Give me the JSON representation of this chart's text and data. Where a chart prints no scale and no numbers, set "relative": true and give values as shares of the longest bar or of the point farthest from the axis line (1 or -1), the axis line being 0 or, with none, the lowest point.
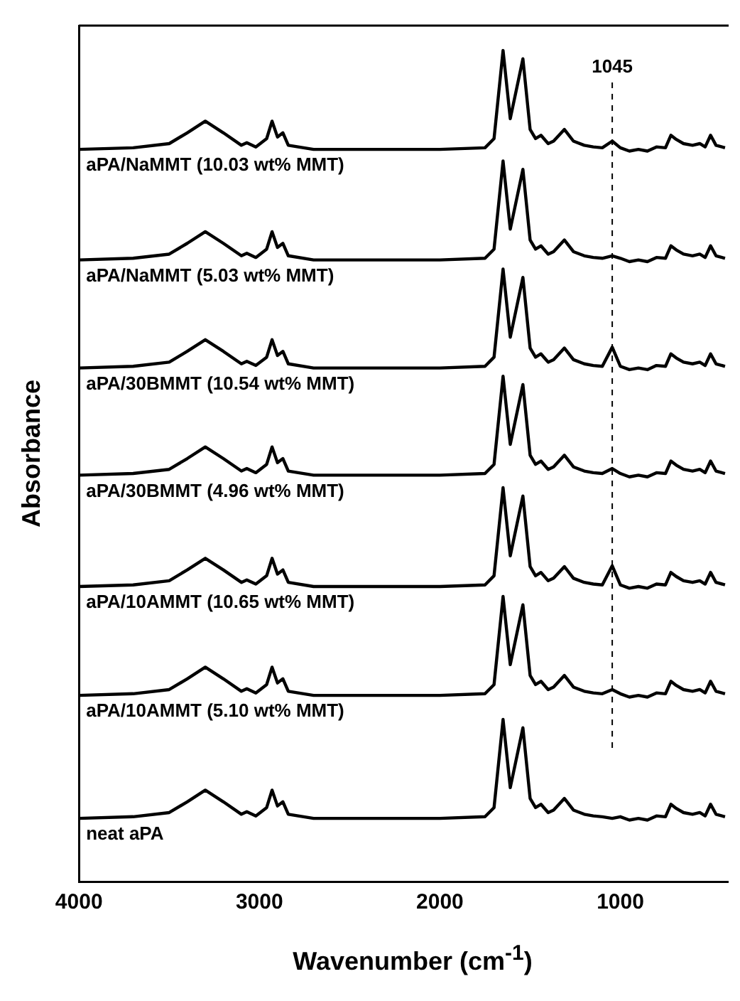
{
  "chart_data": {
    "type": "line",
    "xlabel": "Wavenumber (cm$^{-1}$)",
    "ylabel": "Absorbance",
    "relative": true,
    "grid": false,
    "legend": false,
    "marker": "none",
    "line_style": "solid",
    "xlim": [
      4000,
      400
    ],
    "xticks": [
      4000,
      3000,
      2000,
      1000
    ],
    "x": [
      4000,
      3700,
      3500,
      3400,
      3300,
      3200,
      3100,
      3070,
      3020,
      2960,
      2930,
      2900,
      2870,
      2840,
      2700,
      2000,
      1750,
      1700,
      1650,
      1610,
      1540,
      1500,
      1470,
      1440,
      1400,
      1370,
      1310,
      1260,
      1200,
      1150,
      1100,
      1045,
      1000,
      950,
      900,
      850,
      800,
      750,
      720,
      690,
      650,
      600,
      560,
      530,
      500,
      470,
      420
    ],
    "series": [
      {
        "name": "aPA/NaMMT (10.03 wt% MMT)",
        "color": "#000000",
        "values": [
          0.881,
          0.883,
          0.888,
          0.901,
          0.915,
          0.901,
          0.886,
          0.889,
          0.884,
          0.894,
          0.915,
          0.896,
          0.901,
          0.886,
          0.881,
          0.881,
          0.883,
          0.894,
          1.0,
          0.918,
          0.99,
          0.905,
          0.894,
          0.898,
          0.888,
          0.891,
          0.905,
          0.891,
          0.886,
          0.884,
          0.883,
          0.891,
          0.883,
          0.879,
          0.881,
          0.879,
          0.884,
          0.883,
          0.898,
          0.893,
          0.888,
          0.886,
          0.888,
          0.884,
          0.898,
          0.886,
          0.883
        ]
      },
      {
        "name": "aPA/NaMMT (5.03 wt% MMT)",
        "color": "#000000",
        "values": [
          0.748,
          0.75,
          0.755,
          0.768,
          0.782,
          0.768,
          0.753,
          0.756,
          0.751,
          0.761,
          0.782,
          0.763,
          0.768,
          0.753,
          0.748,
          0.748,
          0.75,
          0.761,
          0.867,
          0.785,
          0.857,
          0.772,
          0.761,
          0.765,
          0.755,
          0.758,
          0.772,
          0.758,
          0.753,
          0.751,
          0.75,
          0.753,
          0.75,
          0.746,
          0.748,
          0.746,
          0.751,
          0.75,
          0.765,
          0.76,
          0.755,
          0.753,
          0.755,
          0.751,
          0.765,
          0.753,
          0.75
        ]
      },
      {
        "name": "aPA/30BMMT (10.54 wt% MMT)",
        "color": "#000000",
        "values": [
          0.618,
          0.62,
          0.625,
          0.638,
          0.652,
          0.638,
          0.623,
          0.626,
          0.621,
          0.631,
          0.652,
          0.633,
          0.638,
          0.623,
          0.618,
          0.618,
          0.62,
          0.631,
          0.737,
          0.655,
          0.727,
          0.642,
          0.631,
          0.635,
          0.625,
          0.628,
          0.642,
          0.628,
          0.623,
          0.621,
          0.62,
          0.643,
          0.62,
          0.616,
          0.618,
          0.616,
          0.621,
          0.62,
          0.635,
          0.63,
          0.625,
          0.623,
          0.625,
          0.621,
          0.635,
          0.623,
          0.62
        ]
      },
      {
        "name": "aPA/30BMMT (4.96 wt% MMT)",
        "color": "#000000",
        "values": [
          0.489,
          0.491,
          0.496,
          0.509,
          0.523,
          0.509,
          0.494,
          0.497,
          0.492,
          0.502,
          0.523,
          0.504,
          0.509,
          0.494,
          0.489,
          0.489,
          0.491,
          0.502,
          0.608,
          0.526,
          0.598,
          0.513,
          0.502,
          0.506,
          0.496,
          0.499,
          0.513,
          0.499,
          0.494,
          0.492,
          0.491,
          0.497,
          0.491,
          0.487,
          0.489,
          0.487,
          0.492,
          0.491,
          0.506,
          0.501,
          0.496,
          0.494,
          0.496,
          0.492,
          0.506,
          0.494,
          0.491
        ]
      },
      {
        "name": "aPA/10AMMT (10.65 wt% MMT)",
        "color": "#000000",
        "values": [
          0.355,
          0.357,
          0.362,
          0.375,
          0.389,
          0.375,
          0.36,
          0.363,
          0.358,
          0.368,
          0.389,
          0.37,
          0.375,
          0.36,
          0.355,
          0.355,
          0.357,
          0.368,
          0.474,
          0.392,
          0.464,
          0.379,
          0.368,
          0.372,
          0.362,
          0.365,
          0.379,
          0.365,
          0.36,
          0.358,
          0.357,
          0.38,
          0.357,
          0.353,
          0.355,
          0.353,
          0.358,
          0.357,
          0.372,
          0.367,
          0.362,
          0.36,
          0.362,
          0.358,
          0.372,
          0.36,
          0.357
        ]
      },
      {
        "name": "aPA/10AMMT (5.10 wt% MMT)",
        "color": "#000000",
        "values": [
          0.224,
          0.226,
          0.231,
          0.244,
          0.258,
          0.244,
          0.229,
          0.232,
          0.227,
          0.237,
          0.258,
          0.239,
          0.244,
          0.229,
          0.224,
          0.224,
          0.226,
          0.237,
          0.343,
          0.261,
          0.333,
          0.248,
          0.237,
          0.241,
          0.231,
          0.234,
          0.248,
          0.234,
          0.229,
          0.227,
          0.226,
          0.231,
          0.226,
          0.222,
          0.224,
          0.222,
          0.227,
          0.226,
          0.241,
          0.236,
          0.231,
          0.229,
          0.231,
          0.227,
          0.241,
          0.229,
          0.226
        ]
      },
      {
        "name": "neat aPA",
        "color": "#000000",
        "values": [
          0.076,
          0.078,
          0.083,
          0.096,
          0.11,
          0.096,
          0.081,
          0.084,
          0.079,
          0.089,
          0.11,
          0.091,
          0.096,
          0.081,
          0.076,
          0.076,
          0.078,
          0.089,
          0.195,
          0.113,
          0.185,
          0.1,
          0.089,
          0.093,
          0.083,
          0.086,
          0.1,
          0.086,
          0.081,
          0.079,
          0.078,
          0.076,
          0.078,
          0.074,
          0.076,
          0.074,
          0.079,
          0.078,
          0.093,
          0.088,
          0.083,
          0.081,
          0.083,
          0.079,
          0.093,
          0.081,
          0.078
        ]
      }
    ],
    "ref_lines": [
      {
        "axis": "x",
        "value": 1045,
        "label": "1045",
        "color": "#000000",
        "line_style": "dashed"
      }
    ]
  }
}
